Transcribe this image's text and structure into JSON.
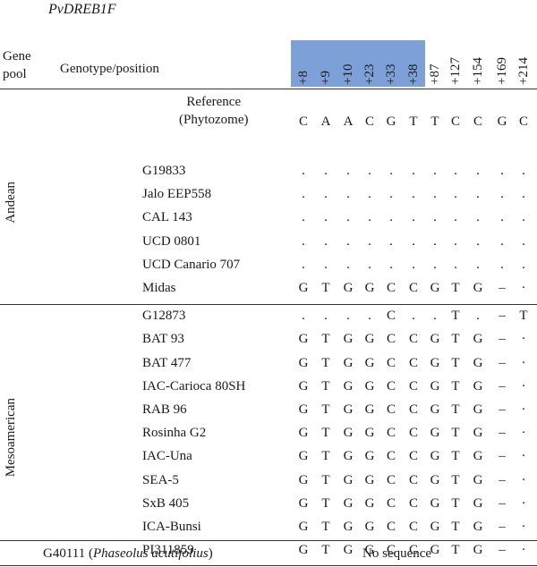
{
  "gene_title": "PvDREB1F",
  "header": {
    "gene_pool_line1": "Gene",
    "gene_pool_line2": "pool",
    "genotype_position": "Genotype/position"
  },
  "positions": [
    "+8",
    "+9",
    "+10",
    "+23",
    "+33",
    "+38",
    "+87",
    "+127",
    "+154",
    "+169",
    "+214"
  ],
  "highlighted_positions": [
    "+8",
    "+9",
    "+10",
    "+23",
    "+33",
    "+38"
  ],
  "highlight_color": "#7da0d8",
  "reference": {
    "label_line1": "Reference",
    "label_line2": "(Phytozome)",
    "bases": [
      "C",
      "A",
      "A",
      "C",
      "G",
      "T",
      "T",
      "C",
      "C",
      "G",
      "C"
    ]
  },
  "groups": [
    {
      "name": "Andean",
      "rows": [
        {
          "genotype": "G19833",
          "bases": [
            ".",
            ".",
            ".",
            ".",
            ".",
            ".",
            ".",
            ".",
            ".",
            ".",
            "."
          ]
        },
        {
          "genotype": "Jalo EEP558",
          "bases": [
            ".",
            ".",
            ".",
            ".",
            ".",
            ".",
            ".",
            ".",
            ".",
            ".",
            "."
          ]
        },
        {
          "genotype": "CAL 143",
          "bases": [
            ".",
            ".",
            ".",
            ".",
            ".",
            ".",
            ".",
            ".",
            ".",
            ".",
            "."
          ]
        },
        {
          "genotype": "UCD 0801",
          "bases": [
            ".",
            ".",
            ".",
            ".",
            ".",
            ".",
            ".",
            ".",
            ".",
            ".",
            "."
          ]
        },
        {
          "genotype": "UCD Canario 707",
          "bases": [
            ".",
            ".",
            ".",
            ".",
            ".",
            ".",
            ".",
            ".",
            ".",
            ".",
            "."
          ]
        },
        {
          "genotype": "Midas",
          "bases": [
            "G",
            "T",
            "G",
            "G",
            "C",
            "C",
            "G",
            "T",
            "G",
            "–",
            "·"
          ]
        }
      ]
    },
    {
      "name": "Mesoamerican",
      "rows": [
        {
          "genotype": "G12873",
          "bases": [
            ".",
            ".",
            ".",
            ".",
            "C",
            ".",
            ".",
            "T",
            ".",
            "–",
            "T"
          ]
        },
        {
          "genotype": "BAT 93",
          "bases": [
            "G",
            "T",
            "G",
            "G",
            "C",
            "C",
            "G",
            "T",
            "G",
            "–",
            "·"
          ]
        },
        {
          "genotype": "BAT 477",
          "bases": [
            "G",
            "T",
            "G",
            "G",
            "C",
            "C",
            "G",
            "T",
            "G",
            "–",
            "·"
          ]
        },
        {
          "genotype": "IAC-Carioca 80SH",
          "bases": [
            "G",
            "T",
            "G",
            "G",
            "C",
            "C",
            "G",
            "T",
            "G",
            "–",
            "·"
          ]
        },
        {
          "genotype": "RAB 96",
          "bases": [
            "G",
            "T",
            "G",
            "G",
            "C",
            "C",
            "G",
            "T",
            "G",
            "–",
            "·"
          ]
        },
        {
          "genotype": "Rosinha G2",
          "bases": [
            "G",
            "T",
            "G",
            "G",
            "C",
            "C",
            "G",
            "T",
            "G",
            "–",
            "·"
          ]
        },
        {
          "genotype": "IAC-Una",
          "bases": [
            "G",
            "T",
            "G",
            "G",
            "C",
            "C",
            "G",
            "T",
            "G",
            "–",
            "·"
          ]
        },
        {
          "genotype": "SEA-5",
          "bases": [
            "G",
            "T",
            "G",
            "G",
            "C",
            "C",
            "G",
            "T",
            "G",
            "–",
            "·"
          ]
        },
        {
          "genotype": "SxB 405",
          "bases": [
            "G",
            "T",
            "G",
            "G",
            "C",
            "C",
            "G",
            "T",
            "G",
            "–",
            "·"
          ]
        },
        {
          "genotype": "ICA-Bunsi",
          "bases": [
            "G",
            "T",
            "G",
            "G",
            "C",
            "C",
            "G",
            "T",
            "G",
            "–",
            "·"
          ]
        },
        {
          "genotype": "PI311859",
          "bases": [
            "G",
            "T",
            "G",
            "G",
            "C",
            "C",
            "G",
            "T",
            "G",
            "–",
            "·"
          ]
        }
      ]
    }
  ],
  "outgroup": {
    "genotype": "G40111",
    "species": "Phaseolus acutifolius",
    "note": "No sequence"
  }
}
